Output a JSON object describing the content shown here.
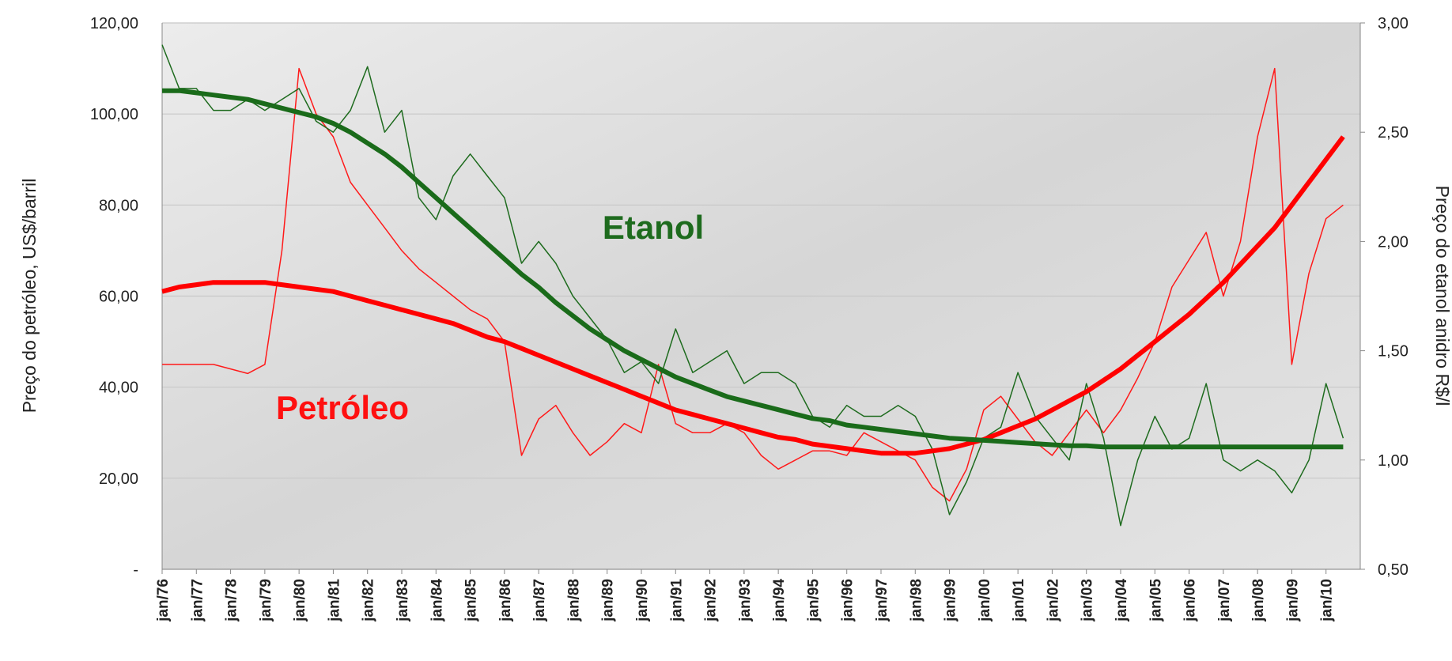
{
  "chart_data": {
    "type": "line",
    "ylabel": "Preço do petróleo, US$/barril",
    "y2label": "Preço do etanol anidro R$/l",
    "categories": [
      "jan/76",
      null,
      "jan/77",
      null,
      "jan/78",
      null,
      "jan/79",
      null,
      "jan/80",
      null,
      "jan/81",
      null,
      "jan/82",
      null,
      "jan/83",
      null,
      "jan/84",
      null,
      "jan/85",
      null,
      "jan/86",
      null,
      "jan/87",
      null,
      "jan/88",
      null,
      "jan/89",
      null,
      "jan/90",
      null,
      "jan/91",
      null,
      "jan/92",
      null,
      "jan/93",
      null,
      "jan/94",
      null,
      "jan/95",
      null,
      "jan/96",
      null,
      "jan/97",
      null,
      "jan/98",
      null,
      "jan/99",
      null,
      "jan/00",
      null,
      "jan/01",
      null,
      "jan/02",
      null,
      "jan/03",
      null,
      "jan/04",
      null,
      "jan/05",
      null,
      "jan/06",
      null,
      "jan/07",
      null,
      "jan/08",
      null,
      "jan/09",
      null,
      "jan/10",
      null
    ],
    "ylim": [
      0,
      120
    ],
    "yticks": [
      {
        "value": 0,
        "label": "-"
      },
      {
        "value": 20,
        "label": "20,00"
      },
      {
        "value": 40,
        "label": "40,00"
      },
      {
        "value": 60,
        "label": "60,00"
      },
      {
        "value": 80,
        "label": "80,00"
      },
      {
        "value": 100,
        "label": "100,00"
      },
      {
        "value": 120,
        "label": "120,00"
      }
    ],
    "y2lim": [
      0.5,
      3
    ],
    "y2ticks": [
      {
        "value": 0.5,
        "label": "0,50"
      },
      {
        "value": 1,
        "label": "1,00"
      },
      {
        "value": 1.5,
        "label": "1,50"
      },
      {
        "value": 2,
        "label": "2,00"
      },
      {
        "value": 2.5,
        "label": "2,50"
      },
      {
        "value": 3,
        "label": "3,00"
      }
    ],
    "grid": true,
    "series": [
      {
        "name": "Petróleo",
        "color": "#ff1a1a",
        "values": [
          45,
          45,
          45,
          45,
          44,
          43,
          45,
          70,
          110,
          100,
          95,
          85,
          80,
          75,
          70,
          66,
          63,
          60,
          57,
          55,
          50,
          25,
          33,
          36,
          30,
          25,
          28,
          32,
          30,
          45,
          32,
          30,
          30,
          32,
          30,
          25,
          22,
          24,
          26,
          26,
          25,
          30,
          28,
          26,
          24,
          18,
          15,
          22,
          35,
          38,
          33,
          28,
          25,
          30,
          35,
          30,
          35,
          42,
          50,
          62,
          68,
          74,
          60,
          72,
          95,
          110,
          45,
          65,
          77,
          80
        ]
      },
      {
        "name": "Etanol",
        "color": "#1e6b1e",
        "axis": "y2",
        "values": [
          2.9,
          2.7,
          2.7,
          2.6,
          2.6,
          2.65,
          2.6,
          2.65,
          2.7,
          2.55,
          2.5,
          2.6,
          2.8,
          2.5,
          2.6,
          2.2,
          2.1,
          2.3,
          2.4,
          2.3,
          2.2,
          1.9,
          2.0,
          1.9,
          1.75,
          1.65,
          1.55,
          1.4,
          1.45,
          1.35,
          1.6,
          1.4,
          1.45,
          1.5,
          1.35,
          1.4,
          1.4,
          1.35,
          1.2,
          1.15,
          1.25,
          1.2,
          1.2,
          1.25,
          1.2,
          1.05,
          0.75,
          0.9,
          1.1,
          1.15,
          1.4,
          1.2,
          1.1,
          1.0,
          1.35,
          1.1,
          0.7,
          1.0,
          1.2,
          1.05,
          1.1,
          1.35,
          1.0,
          0.95,
          1.0,
          0.95,
          0.85,
          1.0,
          1.35,
          1.1
        ]
      },
      {
        "color": "#ff0000",
        "values": [
          61,
          62,
          62.5,
          63,
          63,
          63,
          63,
          62.5,
          62,
          61.5,
          61,
          60,
          59,
          58,
          57,
          56,
          55,
          54,
          52.5,
          51,
          50,
          48.5,
          47,
          45.5,
          44,
          42.5,
          41,
          39.5,
          38,
          36.5,
          35,
          34,
          33,
          32,
          31,
          30,
          29,
          28.5,
          27.5,
          27,
          26.5,
          26,
          25.5,
          25.5,
          25.5,
          26,
          26.5,
          27.5,
          28.5,
          30,
          31.5,
          33,
          35,
          37,
          39,
          41.5,
          44,
          47,
          50,
          53,
          56,
          59.5,
          63,
          67,
          71,
          75,
          80,
          85,
          90,
          95
        ]
      },
      {
        "color": "#1a6b1a",
        "axis": "y2",
        "values": [
          2.69,
          2.69,
          2.68,
          2.67,
          2.66,
          2.65,
          2.63,
          2.61,
          2.59,
          2.57,
          2.54,
          2.5,
          2.45,
          2.4,
          2.34,
          2.27,
          2.2,
          2.13,
          2.06,
          1.99,
          1.92,
          1.85,
          1.79,
          1.72,
          1.66,
          1.6,
          1.55,
          1.5,
          1.46,
          1.42,
          1.38,
          1.35,
          1.32,
          1.29,
          1.27,
          1.25,
          1.23,
          1.21,
          1.19,
          1.18,
          1.16,
          1.15,
          1.14,
          1.13,
          1.12,
          1.11,
          1.1,
          1.095,
          1.09,
          1.085,
          1.08,
          1.075,
          1.07,
          1.065,
          1.065,
          1.06,
          1.06,
          1.06,
          1.06,
          1.06,
          1.06,
          1.06,
          1.06,
          1.06,
          1.06,
          1.06,
          1.06,
          1.06,
          1.06,
          1.06
        ]
      }
    ]
  }
}
